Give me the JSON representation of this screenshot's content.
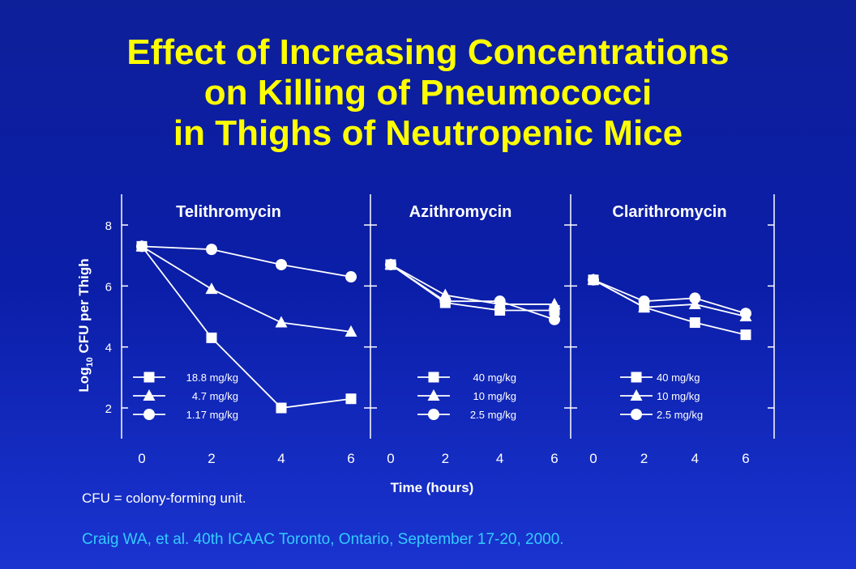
{
  "title_lines": [
    "Effect of Increasing Concentrations",
    "on Killing of Pneumococci",
    "in Thighs of Neutropenic Mice"
  ],
  "footnote": "CFU = colony-forming unit.",
  "citation": "Craig WA, et al. 40th ICAAC Toronto, Ontario, September 17-20, 2000.",
  "colors": {
    "background": "#0b1ea8",
    "title": "#ffff00",
    "axes": "#ffffff",
    "citation": "#33ccff"
  },
  "chart_data": {
    "type": "line",
    "xlabel": "Time (hours)",
    "ylabel": {
      "prefix": "Log",
      "subscript": "10",
      "suffix": " CFU per Thigh"
    },
    "ylim": [
      1,
      9
    ],
    "yticks": [
      2,
      4,
      6,
      8
    ],
    "xticks": [
      0,
      2,
      4,
      6
    ],
    "panels": [
      {
        "name": "Telithromycin",
        "series": [
          {
            "name": "18.8 mg/kg",
            "marker": "square",
            "x": [
              0,
              2,
              4,
              6
            ],
            "y": [
              7.3,
              4.3,
              2.0,
              2.3
            ]
          },
          {
            "name": "4.7 mg/kg",
            "marker": "triangle",
            "x": [
              0,
              2,
              4,
              6
            ],
            "y": [
              7.3,
              5.9,
              4.8,
              4.5
            ]
          },
          {
            "name": "1.17 mg/kg",
            "marker": "circle",
            "x": [
              0,
              2,
              4,
              6
            ],
            "y": [
              7.3,
              7.2,
              6.7,
              6.3
            ]
          }
        ]
      },
      {
        "name": "Azithromycin",
        "series": [
          {
            "name": "40 mg/kg",
            "marker": "square",
            "x": [
              0,
              2,
              4,
              6
            ],
            "y": [
              6.7,
              5.45,
              5.2,
              5.2
            ]
          },
          {
            "name": "10 mg/kg",
            "marker": "triangle",
            "x": [
              0,
              2,
              4,
              6
            ],
            "y": [
              6.7,
              5.7,
              5.4,
              5.4
            ]
          },
          {
            "name": "2.5 mg/kg",
            "marker": "circle",
            "x": [
              0,
              2,
              4,
              6
            ],
            "y": [
              6.7,
              5.5,
              5.5,
              4.9
            ]
          }
        ]
      },
      {
        "name": "Clarithromycin",
        "series": [
          {
            "name": "40 mg/kg",
            "marker": "square",
            "x": [
              0,
              2,
              4,
              6
            ],
            "y": [
              6.2,
              5.3,
              4.8,
              4.4
            ]
          },
          {
            "name": "10 mg/kg",
            "marker": "triangle",
            "x": [
              0,
              2,
              4,
              6
            ],
            "y": [
              6.2,
              5.3,
              5.4,
              5.0
            ]
          },
          {
            "name": "2.5 mg/kg",
            "marker": "circle",
            "x": [
              0,
              2,
              4,
              6
            ],
            "y": [
              6.2,
              5.5,
              5.6,
              5.1
            ]
          }
        ]
      }
    ]
  }
}
